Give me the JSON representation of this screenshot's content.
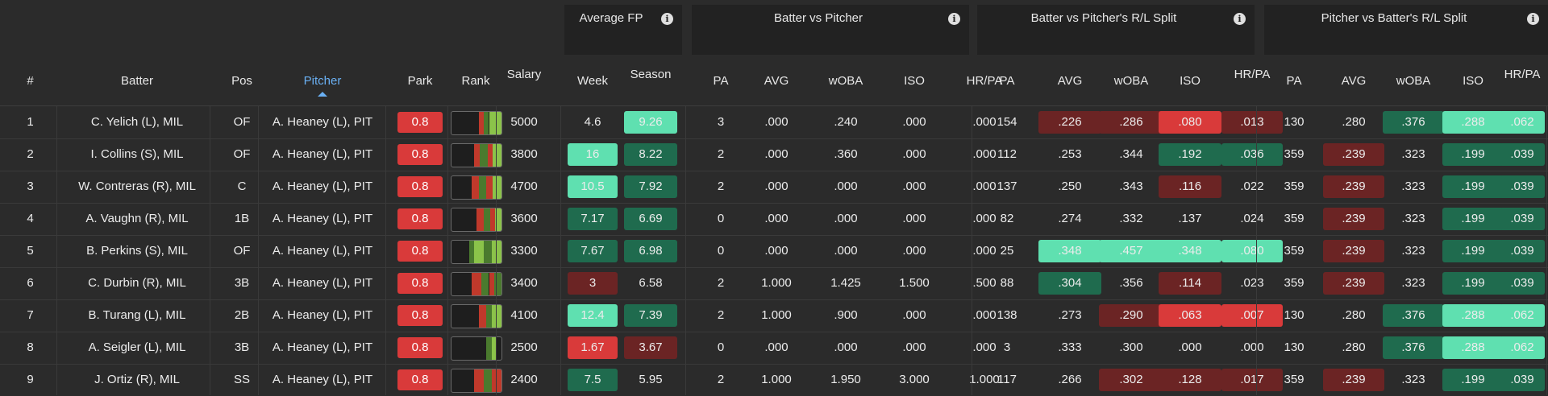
{
  "groups": [
    {
      "title": "Average FP"
    },
    {
      "title": "Batter vs Pitcher"
    },
    {
      "title": "Batter vs Pitcher's R/L Split"
    },
    {
      "title": "Pitcher vs Batter's R/L Split"
    }
  ],
  "info_icon_glyph": "i",
  "headers": {
    "num": "#",
    "batter": "Batter",
    "pos": "Pos",
    "pitcher": "Pitcher",
    "park": "Park",
    "rank": "Rank",
    "salary": "Salary",
    "week": "Week",
    "season": "Season",
    "bvp": [
      "PA",
      "AVG",
      "wOBA",
      "ISO",
      "HR/PA"
    ],
    "bvs": [
      "PA",
      "AVG",
      "wOBA",
      "ISO",
      "HR/PA"
    ],
    "pvb": [
      "PA",
      "AVG",
      "wOBA",
      "ISO",
      "HR/PA"
    ]
  },
  "sort": {
    "column": "pitcher",
    "direction": "ascending",
    "icon": "caret-up-icon"
  },
  "colors": {
    "park_red": "#d93a3a",
    "strong_green": "#3fd1a0",
    "med_green": "#2a9d74",
    "dark_green": "#1f6b4e",
    "light_green": "#5fe0b0",
    "strong_red": "#d93a3a",
    "dark_red": "#6b2424",
    "rank_green": "#8bc34a",
    "rank_red": "#c0392b"
  },
  "rows": [
    {
      "num": "1",
      "batter": "C. Yelich (L), MIL",
      "pos": "OF",
      "pitcher": "A. Heaney (L), PIT",
      "park": "0.8",
      "salary": "5000",
      "week": {
        "v": "4.6",
        "c": ""
      },
      "season": {
        "v": "9.26",
        "c": "light"
      },
      "bvp": [
        {
          "v": "3"
        },
        {
          "v": ".000"
        },
        {
          "v": ".240"
        },
        {
          "v": ".000"
        },
        {
          "v": ".000"
        }
      ],
      "bvs": [
        {
          "v": "154"
        },
        {
          "v": ".226",
          "c": "dred"
        },
        {
          "v": ".286",
          "c": "dred"
        },
        {
          "v": ".080",
          "c": "red"
        },
        {
          "v": ".013",
          "c": "dred"
        }
      ],
      "pvb": [
        {
          "v": "130"
        },
        {
          "v": ".280"
        },
        {
          "v": ".376",
          "c": "dgreen"
        },
        {
          "v": ".288",
          "c": "light"
        },
        {
          "v": ".062",
          "c": "light"
        }
      ],
      "rank": [
        {
          "w": 0.55,
          "c": "none"
        },
        {
          "w": 0.1,
          "c": "red"
        },
        {
          "w": 0.1,
          "c": "dgreen"
        },
        {
          "w": 0.1,
          "c": "green"
        },
        {
          "w": 0.15,
          "c": "green"
        }
      ]
    },
    {
      "num": "2",
      "batter": "I. Collins (S), MIL",
      "pos": "OF",
      "pitcher": "A. Heaney (L), PIT",
      "park": "0.8",
      "salary": "3800",
      "week": {
        "v": "16",
        "c": "light"
      },
      "season": {
        "v": "8.22",
        "c": "dgreen"
      },
      "bvp": [
        {
          "v": "2"
        },
        {
          "v": ".000"
        },
        {
          "v": ".360"
        },
        {
          "v": ".000"
        },
        {
          "v": ".000"
        }
      ],
      "bvs": [
        {
          "v": "112"
        },
        {
          "v": ".253"
        },
        {
          "v": ".344"
        },
        {
          "v": ".192",
          "c": "dgreen"
        },
        {
          "v": ".036",
          "c": "dgreen"
        }
      ],
      "pvb": [
        {
          "v": "359"
        },
        {
          "v": ".239",
          "c": "dred"
        },
        {
          "v": ".323"
        },
        {
          "v": ".199",
          "c": "dgreen"
        },
        {
          "v": ".039",
          "c": "dgreen"
        }
      ],
      "rank": [
        {
          "w": 0.45,
          "c": "none"
        },
        {
          "w": 0.12,
          "c": "red"
        },
        {
          "w": 0.15,
          "c": "dgreen"
        },
        {
          "w": 0.1,
          "c": "red"
        },
        {
          "w": 0.18,
          "c": "green"
        }
      ]
    },
    {
      "num": "3",
      "batter": "W. Contreras (R), MIL",
      "pos": "C",
      "pitcher": "A. Heaney (L), PIT",
      "park": "0.8",
      "salary": "4700",
      "week": {
        "v": "10.5",
        "c": "light"
      },
      "season": {
        "v": "7.92",
        "c": "dgreen"
      },
      "bvp": [
        {
          "v": "2"
        },
        {
          "v": ".000"
        },
        {
          "v": ".000"
        },
        {
          "v": ".000"
        },
        {
          "v": ".000"
        }
      ],
      "bvs": [
        {
          "v": "137"
        },
        {
          "v": ".250"
        },
        {
          "v": ".343"
        },
        {
          "v": ".116",
          "c": "dred"
        },
        {
          "v": ".022"
        }
      ],
      "pvb": [
        {
          "v": "359"
        },
        {
          "v": ".239",
          "c": "dred"
        },
        {
          "v": ".323"
        },
        {
          "v": ".199",
          "c": "dgreen"
        },
        {
          "v": ".039",
          "c": "dgreen"
        }
      ],
      "rank": [
        {
          "w": 0.4,
          "c": "none"
        },
        {
          "w": 0.15,
          "c": "red"
        },
        {
          "w": 0.15,
          "c": "dgreen"
        },
        {
          "w": 0.12,
          "c": "red"
        },
        {
          "w": 0.18,
          "c": "green"
        }
      ]
    },
    {
      "num": "4",
      "batter": "A. Vaughn (R), MIL",
      "pos": "1B",
      "pitcher": "A. Heaney (L), PIT",
      "park": "0.8",
      "salary": "3600",
      "week": {
        "v": "7.17",
        "c": "dgreen"
      },
      "season": {
        "v": "6.69",
        "c": "dgreen"
      },
      "bvp": [
        {
          "v": "0"
        },
        {
          "v": ".000"
        },
        {
          "v": ".000"
        },
        {
          "v": ".000"
        },
        {
          "v": ".000"
        }
      ],
      "bvs": [
        {
          "v": "82"
        },
        {
          "v": ".274"
        },
        {
          "v": ".332"
        },
        {
          "v": ".137"
        },
        {
          "v": ".024"
        }
      ],
      "pvb": [
        {
          "v": "359"
        },
        {
          "v": ".239",
          "c": "dred"
        },
        {
          "v": ".323"
        },
        {
          "v": ".199",
          "c": "dgreen"
        },
        {
          "v": ".039",
          "c": "dgreen"
        }
      ],
      "rank": [
        {
          "w": 0.5,
          "c": "none"
        },
        {
          "w": 0.15,
          "c": "red"
        },
        {
          "w": 0.12,
          "c": "dgreen"
        },
        {
          "w": 0.1,
          "c": "red"
        },
        {
          "w": 0.13,
          "c": "green"
        }
      ]
    },
    {
      "num": "5",
      "batter": "B. Perkins (S), MIL",
      "pos": "OF",
      "pitcher": "A. Heaney (L), PIT",
      "park": "0.8",
      "salary": "3300",
      "week": {
        "v": "7.67",
        "c": "dgreen"
      },
      "season": {
        "v": "6.98",
        "c": "dgreen"
      },
      "bvp": [
        {
          "v": "0"
        },
        {
          "v": ".000"
        },
        {
          "v": ".000"
        },
        {
          "v": ".000"
        },
        {
          "v": ".000"
        }
      ],
      "bvs": [
        {
          "v": "25"
        },
        {
          "v": ".348",
          "c": "light"
        },
        {
          "v": ".457",
          "c": "light"
        },
        {
          "v": ".348",
          "c": "light"
        },
        {
          "v": ".080",
          "c": "light"
        }
      ],
      "pvb": [
        {
          "v": "359"
        },
        {
          "v": ".239",
          "c": "dred"
        },
        {
          "v": ".323"
        },
        {
          "v": ".199",
          "c": "dgreen"
        },
        {
          "v": ".039",
          "c": "dgreen"
        }
      ],
      "rank": [
        {
          "w": 0.35,
          "c": "none"
        },
        {
          "w": 0.1,
          "c": "dgreen"
        },
        {
          "w": 0.2,
          "c": "green"
        },
        {
          "w": 0.15,
          "c": "dgreen"
        },
        {
          "w": 0.2,
          "c": "green"
        }
      ]
    },
    {
      "num": "6",
      "batter": "C. Durbin (R), MIL",
      "pos": "3B",
      "pitcher": "A. Heaney (L), PIT",
      "park": "0.8",
      "salary": "3400",
      "week": {
        "v": "3",
        "c": "dred"
      },
      "season": {
        "v": "6.58",
        "c": ""
      },
      "bvp": [
        {
          "v": "2"
        },
        {
          "v": "1.000"
        },
        {
          "v": "1.425"
        },
        {
          "v": "1.500"
        },
        {
          "v": ".500"
        }
      ],
      "bvs": [
        {
          "v": "88"
        },
        {
          "v": ".304",
          "c": "dgreen"
        },
        {
          "v": ".356"
        },
        {
          "v": ".114",
          "c": "dred"
        },
        {
          "v": ".023"
        }
      ],
      "pvb": [
        {
          "v": "359"
        },
        {
          "v": ".239",
          "c": "dred"
        },
        {
          "v": ".323"
        },
        {
          "v": ".199",
          "c": "dgreen"
        },
        {
          "v": ".039",
          "c": "dgreen"
        }
      ],
      "rank": [
        {
          "w": 0.4,
          "c": "none"
        },
        {
          "w": 0.2,
          "c": "red"
        },
        {
          "w": 0.15,
          "c": "dgreen"
        },
        {
          "w": 0.1,
          "c": "red"
        },
        {
          "w": 0.15,
          "c": "dgreen"
        }
      ]
    },
    {
      "num": "7",
      "batter": "B. Turang (L), MIL",
      "pos": "2B",
      "pitcher": "A. Heaney (L), PIT",
      "park": "0.8",
      "salary": "4100",
      "week": {
        "v": "12.4",
        "c": "light"
      },
      "season": {
        "v": "7.39",
        "c": "dgreen"
      },
      "bvp": [
        {
          "v": "2"
        },
        {
          "v": "1.000"
        },
        {
          "v": ".900"
        },
        {
          "v": ".000"
        },
        {
          "v": ".000"
        }
      ],
      "bvs": [
        {
          "v": "138"
        },
        {
          "v": ".273"
        },
        {
          "v": ".290",
          "c": "dred"
        },
        {
          "v": ".063",
          "c": "red"
        },
        {
          "v": ".007",
          "c": "red"
        }
      ],
      "pvb": [
        {
          "v": "130"
        },
        {
          "v": ".280"
        },
        {
          "v": ".376",
          "c": "dgreen"
        },
        {
          "v": ".288",
          "c": "light"
        },
        {
          "v": ".062",
          "c": "light"
        }
      ],
      "rank": [
        {
          "w": 0.55,
          "c": "none"
        },
        {
          "w": 0.15,
          "c": "red"
        },
        {
          "w": 0.1,
          "c": "dgreen"
        },
        {
          "w": 0.2,
          "c": "green"
        }
      ]
    },
    {
      "num": "8",
      "batter": "A. Seigler (L), MIL",
      "pos": "3B",
      "pitcher": "A. Heaney (L), PIT",
      "park": "0.8",
      "salary": "2500",
      "week": {
        "v": "1.67",
        "c": "red"
      },
      "season": {
        "v": "3.67",
        "c": "dred"
      },
      "bvp": [
        {
          "v": "0"
        },
        {
          "v": ".000"
        },
        {
          "v": ".000"
        },
        {
          "v": ".000"
        },
        {
          "v": ".000"
        }
      ],
      "bvs": [
        {
          "v": "3"
        },
        {
          "v": ".333"
        },
        {
          "v": ".300"
        },
        {
          "v": ".000"
        },
        {
          "v": ".000"
        }
      ],
      "pvb": [
        {
          "v": "130"
        },
        {
          "v": ".280"
        },
        {
          "v": ".376",
          "c": "dgreen"
        },
        {
          "v": ".288",
          "c": "light"
        },
        {
          "v": ".062",
          "c": "light"
        }
      ],
      "rank": [
        {
          "w": 0.7,
          "c": "none"
        },
        {
          "w": 0.1,
          "c": "dgreen"
        },
        {
          "w": 0.1,
          "c": "green"
        },
        {
          "w": 0.1,
          "c": "none"
        }
      ]
    },
    {
      "num": "9",
      "batter": "J. Ortiz (R), MIL",
      "pos": "SS",
      "pitcher": "A. Heaney (L), PIT",
      "park": "0.8",
      "salary": "2400",
      "week": {
        "v": "7.5",
        "c": "dgreen"
      },
      "season": {
        "v": "5.95",
        "c": ""
      },
      "bvp": [
        {
          "v": "2"
        },
        {
          "v": "1.000"
        },
        {
          "v": "1.950"
        },
        {
          "v": "3.000"
        },
        {
          "v": "1.000"
        }
      ],
      "bvs": [
        {
          "v": "117"
        },
        {
          "v": ".266"
        },
        {
          "v": ".302",
          "c": "dred"
        },
        {
          "v": ".128",
          "c": "dred"
        },
        {
          "v": ".017",
          "c": "dred"
        }
      ],
      "pvb": [
        {
          "v": "359"
        },
        {
          "v": ".239",
          "c": "dred"
        },
        {
          "v": ".323"
        },
        {
          "v": ".199",
          "c": "dgreen"
        },
        {
          "v": ".039",
          "c": "dgreen"
        }
      ],
      "rank": [
        {
          "w": 0.45,
          "c": "none"
        },
        {
          "w": 0.2,
          "c": "red"
        },
        {
          "w": 0.15,
          "c": "dgreen"
        },
        {
          "w": 0.2,
          "c": "red"
        }
      ]
    }
  ]
}
